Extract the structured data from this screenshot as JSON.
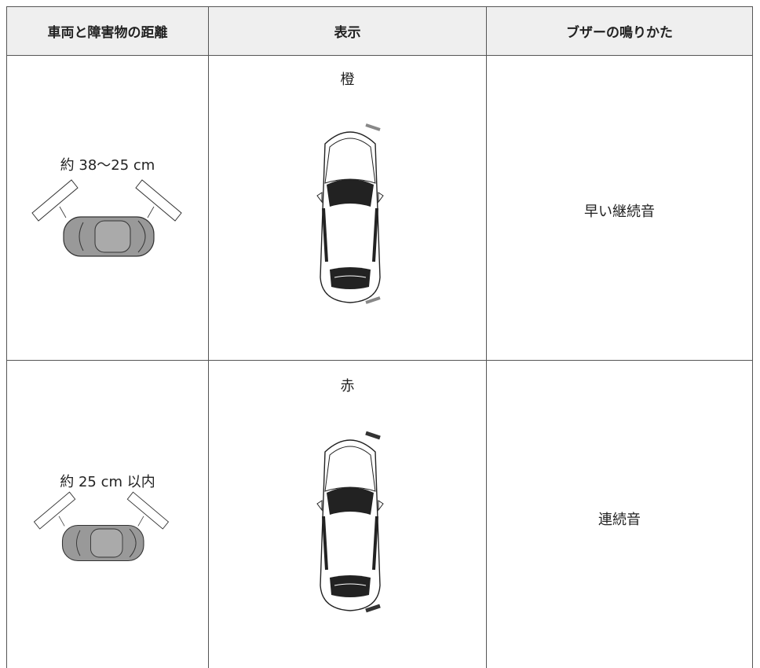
{
  "table": {
    "headers": [
      "車両と障害物の距離",
      "表示",
      "ブザーの鳴りかた"
    ],
    "rows": [
      {
        "distance": "約 38〜25 cm",
        "display": "橙",
        "buzzer": "早い継続音"
      },
      {
        "distance": "約 25 cm 以内",
        "display": "赤",
        "buzzer": "連続音"
      }
    ]
  }
}
